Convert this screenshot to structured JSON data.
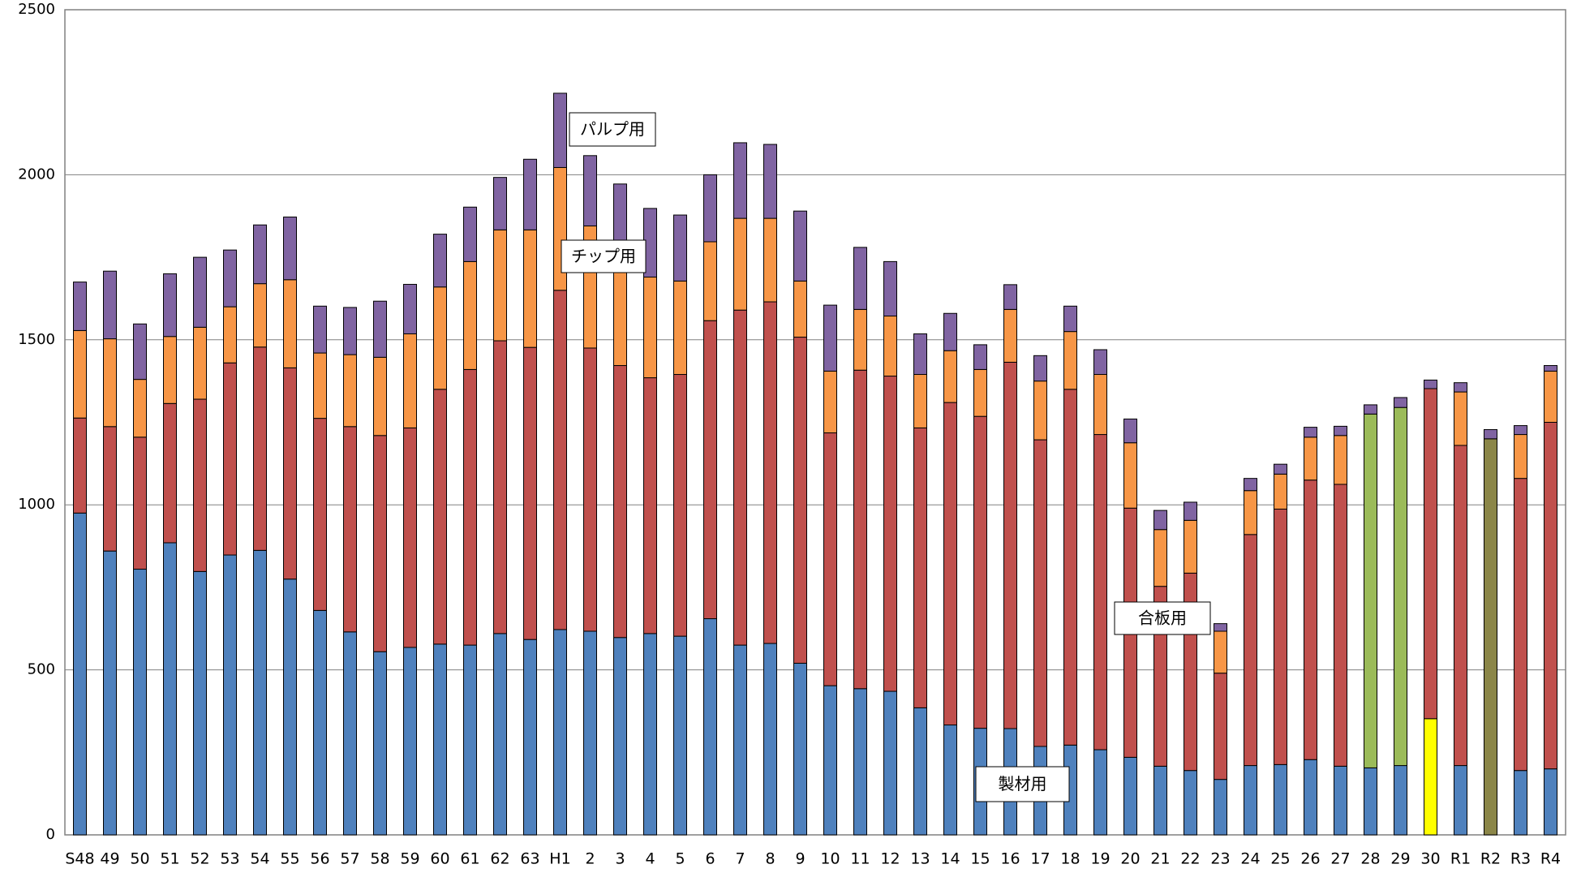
{
  "chart_data": {
    "type": "stacked-bar",
    "categories": [
      "S48",
      "49",
      "50",
      "51",
      "52",
      "53",
      "54",
      "55",
      "56",
      "57",
      "58",
      "59",
      "60",
      "61",
      "62",
      "63",
      "H1",
      "2",
      "3",
      "4",
      "5",
      "6",
      "7",
      "8",
      "9",
      "10",
      "11",
      "12",
      "13",
      "14",
      "15",
      "16",
      "17",
      "18",
      "19",
      "20",
      "21",
      "22",
      "23",
      "24",
      "25",
      "26",
      "27",
      "28",
      "29",
      "30",
      "R1",
      "R2",
      "R3",
      "R4"
    ],
    "series": [
      {
        "name": "製材用",
        "color": "#4f81bd",
        "colors": [
          "#4f81bd",
          "#4f81bd",
          "#4f81bd",
          "#4f81bd",
          "#4f81bd",
          "#4f81bd",
          "#4f81bd",
          "#4f81bd",
          "#4f81bd",
          "#4f81bd",
          "#4f81bd",
          "#4f81bd",
          "#4f81bd",
          "#4f81bd",
          "#4f81bd",
          "#4f81bd",
          "#4f81bd",
          "#4f81bd",
          "#4f81bd",
          "#4f81bd",
          "#4f81bd",
          "#4f81bd",
          "#4f81bd",
          "#4f81bd",
          "#4f81bd",
          "#4f81bd",
          "#4f81bd",
          "#4f81bd",
          "#4f81bd",
          "#4f81bd",
          "#4f81bd",
          "#4f81bd",
          "#4f81bd",
          "#4f81bd",
          "#4f81bd",
          "#4f81bd",
          "#4f81bd",
          "#4f81bd",
          "#4f81bd",
          "#4f81bd",
          "#4f81bd",
          "#4f81bd",
          "#4f81bd",
          "#4f81bd",
          "#4f81bd",
          "#ffff00",
          "#4f81bd",
          "#8b8648",
          "#4f81bd",
          "#4f81bd"
        ],
        "values": [
          975,
          860,
          805,
          885,
          798,
          848,
          862,
          775,
          680,
          615,
          555,
          568,
          578,
          575,
          610,
          592,
          622,
          617,
          598,
          610,
          602,
          655,
          575,
          580,
          520,
          452,
          443,
          435,
          385,
          333,
          323,
          322,
          268,
          272,
          258,
          235,
          208,
          195,
          168,
          210,
          213,
          228,
          208,
          203,
          210,
          352,
          210,
          1200,
          195,
          200
        ]
      },
      {
        "name": "合板用",
        "color": "#c0504d",
        "colors": [
          "#c0504d",
          "#c0504d",
          "#c0504d",
          "#c0504d",
          "#c0504d",
          "#c0504d",
          "#c0504d",
          "#c0504d",
          "#c0504d",
          "#c0504d",
          "#c0504d",
          "#c0504d",
          "#c0504d",
          "#c0504d",
          "#c0504d",
          "#c0504d",
          "#c0504d",
          "#c0504d",
          "#c0504d",
          "#c0504d",
          "#c0504d",
          "#c0504d",
          "#c0504d",
          "#c0504d",
          "#c0504d",
          "#c0504d",
          "#c0504d",
          "#c0504d",
          "#c0504d",
          "#c0504d",
          "#c0504d",
          "#c0504d",
          "#c0504d",
          "#c0504d",
          "#c0504d",
          "#c0504d",
          "#c0504d",
          "#c0504d",
          "#c0504d",
          "#c0504d",
          "#c0504d",
          "#c0504d",
          "#c0504d",
          "#9bbb59",
          "#9bbb59",
          "#c0504d",
          "#c0504d",
          "#c0504d",
          "#c0504d",
          "#c0504d"
        ],
        "values": [
          288,
          377,
          400,
          422,
          522,
          582,
          616,
          640,
          582,
          622,
          655,
          665,
          772,
          835,
          887,
          885,
          1028,
          858,
          824,
          775,
          793,
          903,
          1015,
          1035,
          988,
          766,
          965,
          955,
          848,
          977,
          945,
          1110,
          929,
          1078,
          955,
          755,
          545,
          598,
          322,
          700,
          774,
          847,
          854,
          1072,
          1085,
          1000,
          970,
          0,
          885,
          1050
        ]
      },
      {
        "name": "チップ用",
        "color": "#f79646",
        "values": [
          265,
          266,
          175,
          203,
          218,
          170,
          192,
          267,
          198,
          218,
          237,
          285,
          310,
          327,
          336,
          356,
          372,
          370,
          303,
          305,
          283,
          239,
          278,
          253,
          170,
          187,
          184,
          182,
          162,
          157,
          142,
          160,
          178,
          175,
          182,
          198,
          172,
          160,
          127,
          133,
          106,
          130,
          148,
          0,
          0,
          0,
          162,
          0,
          133,
          155
        ]
      },
      {
        "name": "パルプ用",
        "color": "#8064a2",
        "values": [
          147,
          205,
          168,
          190,
          212,
          172,
          178,
          190,
          142,
          143,
          170,
          150,
          160,
          165,
          159,
          214,
          225,
          213,
          247,
          208,
          200,
          203,
          229,
          224,
          212,
          200,
          188,
          165,
          123,
          113,
          75,
          75,
          77,
          77,
          75,
          72,
          58,
          55,
          23,
          37,
          30,
          30,
          28,
          28,
          30,
          26,
          28,
          28,
          27,
          17
        ]
      }
    ],
    "ylim": [
      0,
      2500
    ],
    "yticks": [
      0,
      500,
      1000,
      1500,
      2000,
      2500
    ],
    "grid": true
  }
}
